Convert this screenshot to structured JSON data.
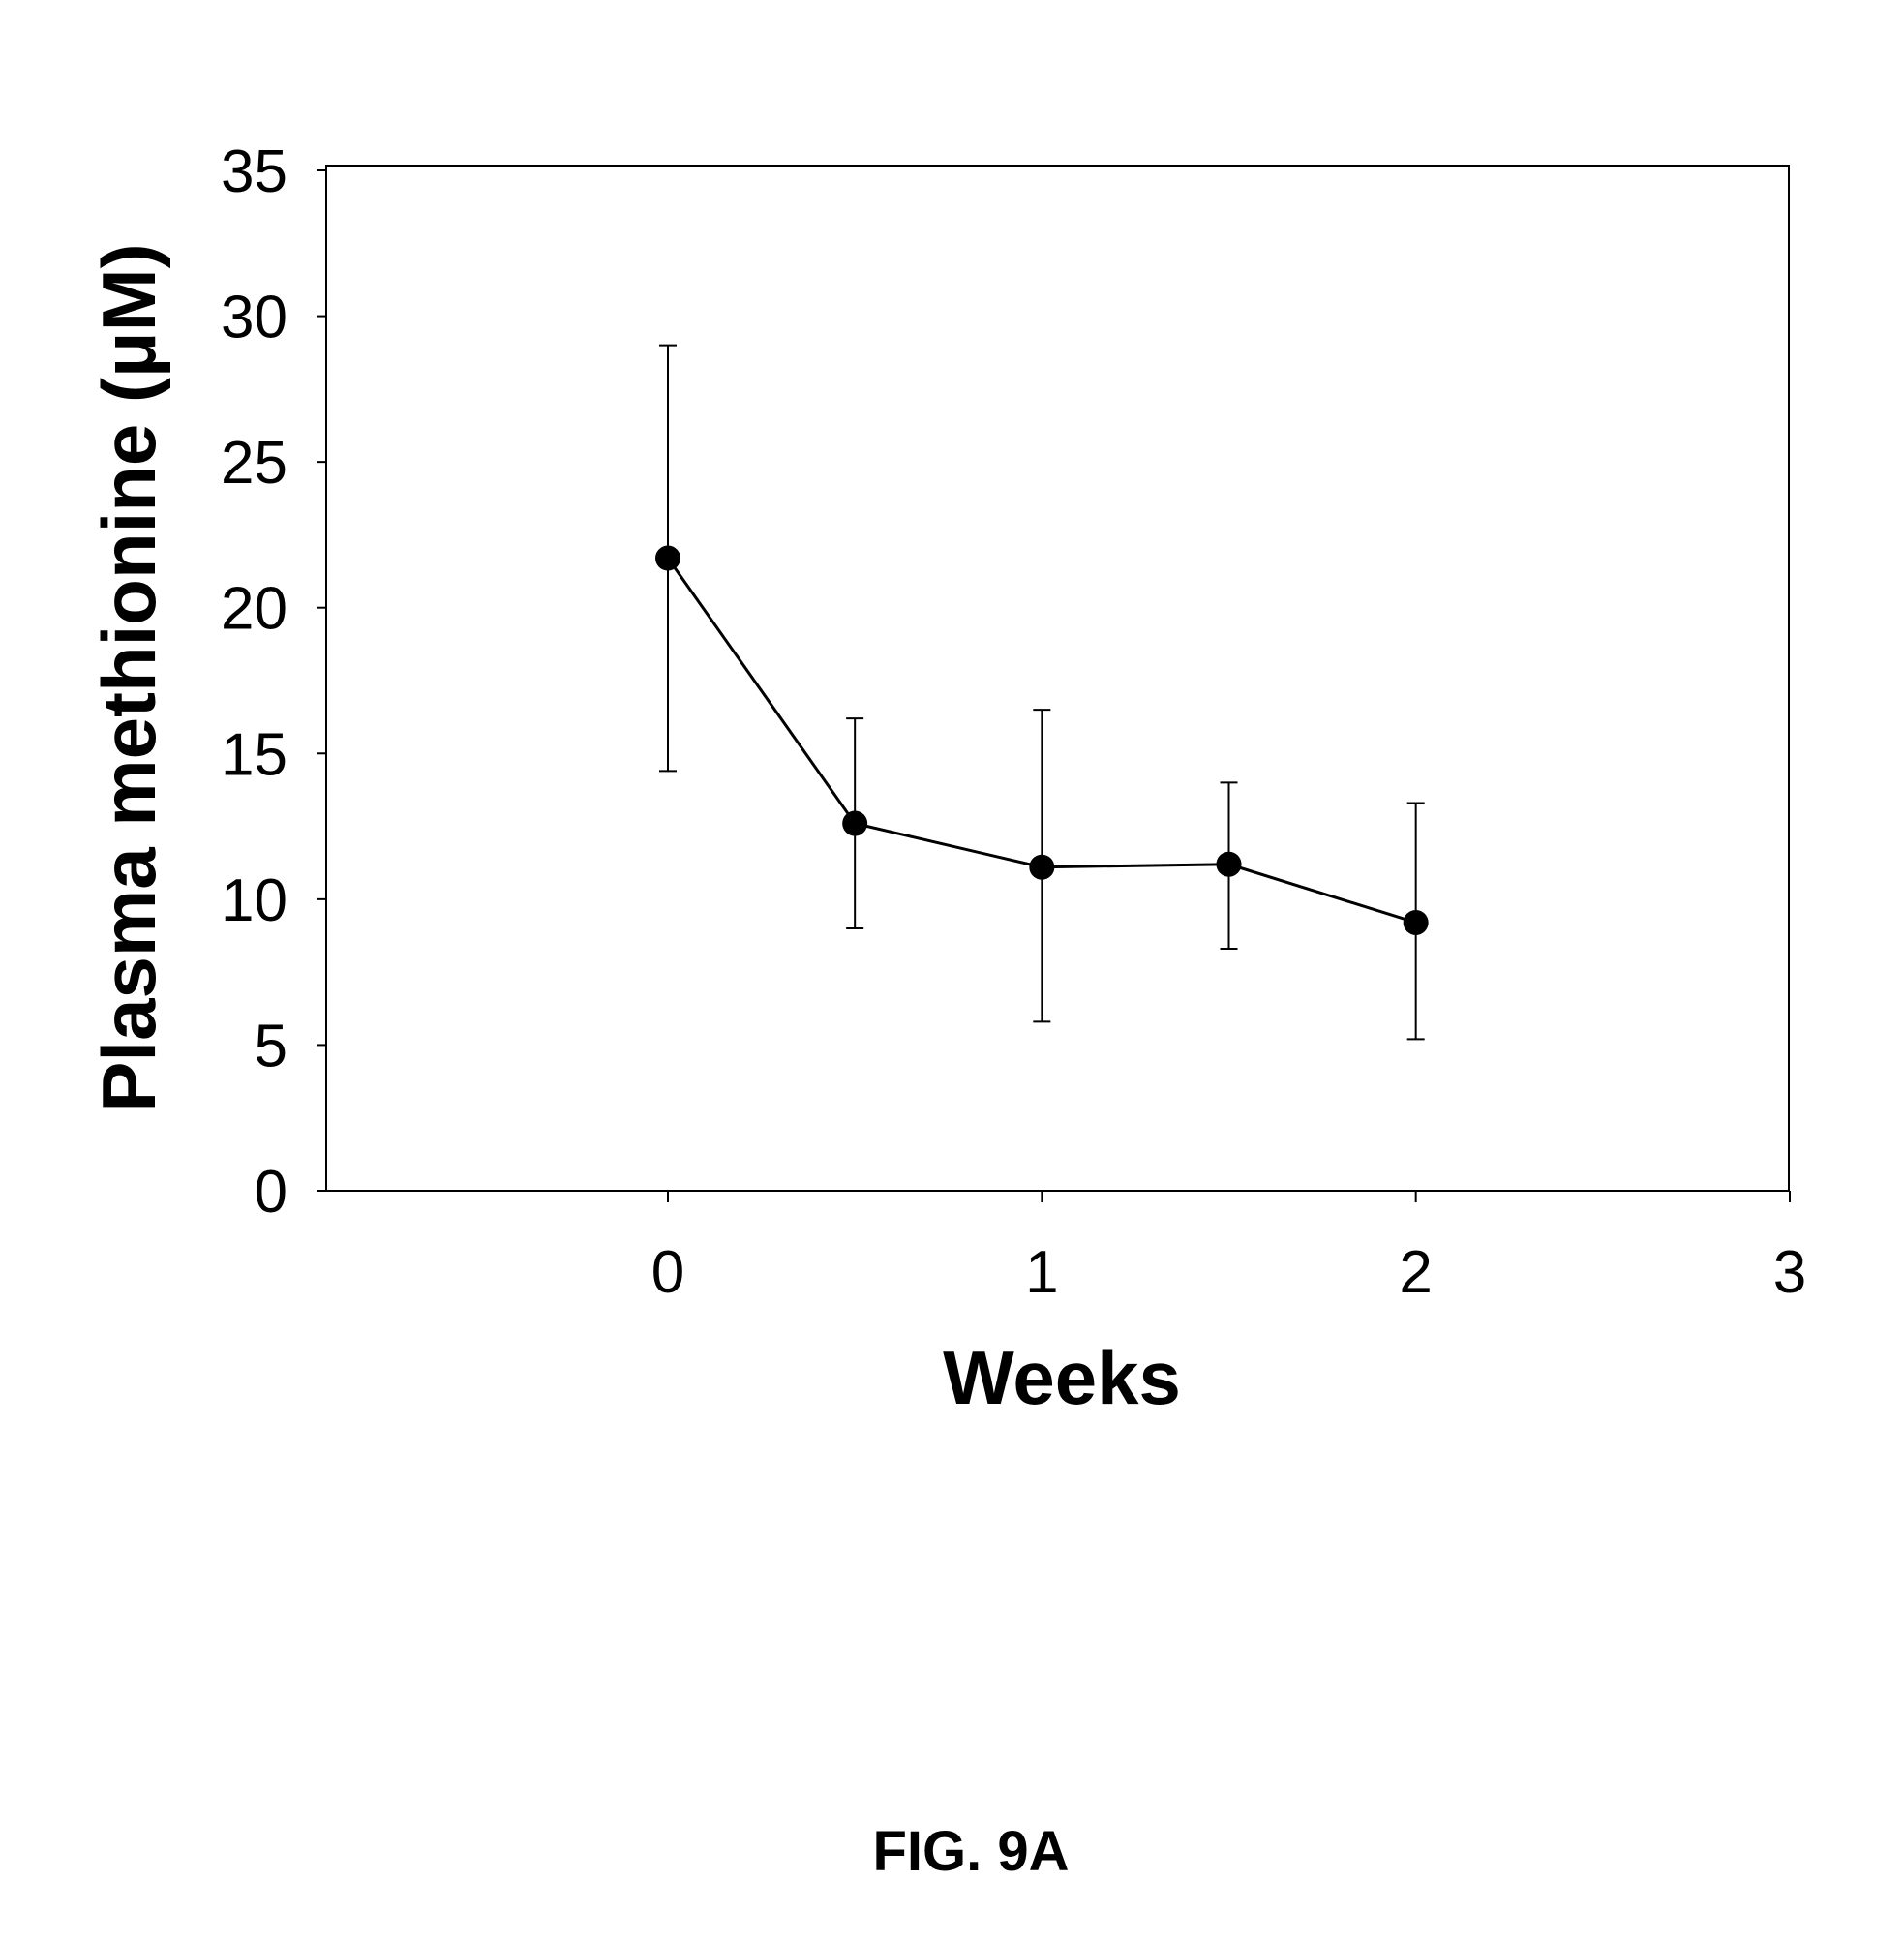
{
  "chart_data": {
    "type": "line",
    "title": "",
    "xlabel": "Weeks",
    "ylabel": "Plasma methionine (μM)",
    "xlim": [
      -0.914,
      3
    ],
    "ylim": [
      0,
      35
    ],
    "xticks": [
      0,
      1,
      2,
      3
    ],
    "xtick_labels": [
      "0",
      "1",
      "2",
      "3"
    ],
    "yticks": [
      0,
      5,
      10,
      15,
      20,
      25,
      30,
      35
    ],
    "ytick_labels": [
      "0",
      "5",
      "10",
      "15",
      "20",
      "25",
      "30",
      "35"
    ],
    "grid": false,
    "series": [
      {
        "name": "Plasma methionine",
        "x": [
          0,
          0.5,
          1,
          1.5,
          2
        ],
        "y": [
          21.7,
          12.6,
          11.1,
          11.2,
          9.2
        ],
        "err_low": [
          14.4,
          9.0,
          5.8,
          8.3,
          5.2
        ],
        "err_high": [
          29.0,
          16.2,
          16.5,
          14.0,
          13.3
        ]
      }
    ],
    "caption": "FIG. 9A"
  }
}
